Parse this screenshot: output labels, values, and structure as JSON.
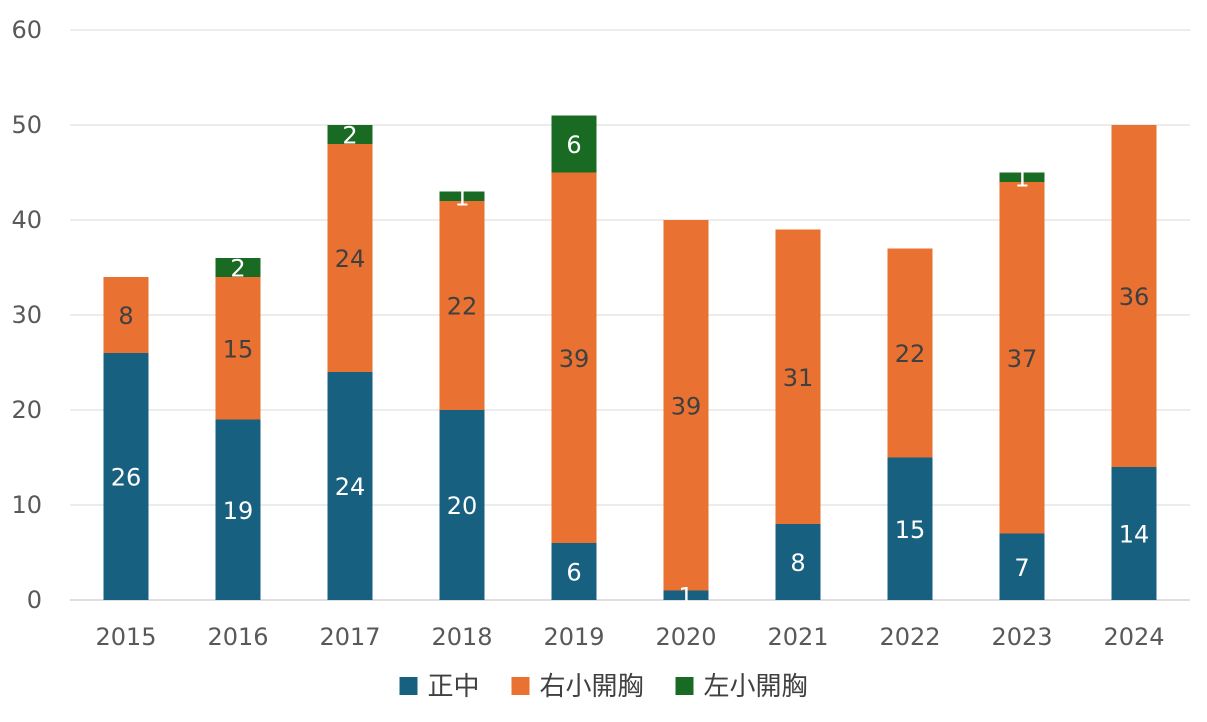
{
  "chart_data": {
    "type": "bar",
    "stacked": true,
    "categories": [
      "2015",
      "2016",
      "2017",
      "2018",
      "2019",
      "2020",
      "2021",
      "2022",
      "2023",
      "2024"
    ],
    "series": [
      {
        "name": "正中",
        "color": "#17607f",
        "label_color": "#ffffff",
        "values": [
          26,
          19,
          24,
          20,
          6,
          1,
          8,
          15,
          7,
          14
        ]
      },
      {
        "name": "右小開胸",
        "color": "#e97132",
        "label_color": "#404040",
        "values": [
          8,
          15,
          24,
          22,
          39,
          39,
          31,
          22,
          37,
          36
        ]
      },
      {
        "name": "左小開胸",
        "color": "#196b24",
        "label_color": "#ffffff",
        "values": [
          0,
          2,
          2,
          1,
          6,
          0,
          0,
          0,
          1,
          0
        ]
      }
    ],
    "ylim": [
      0,
      60
    ],
    "yticks": [
      0,
      10,
      20,
      30,
      40,
      50,
      60
    ],
    "grid": true,
    "legend_position": "bottom"
  }
}
